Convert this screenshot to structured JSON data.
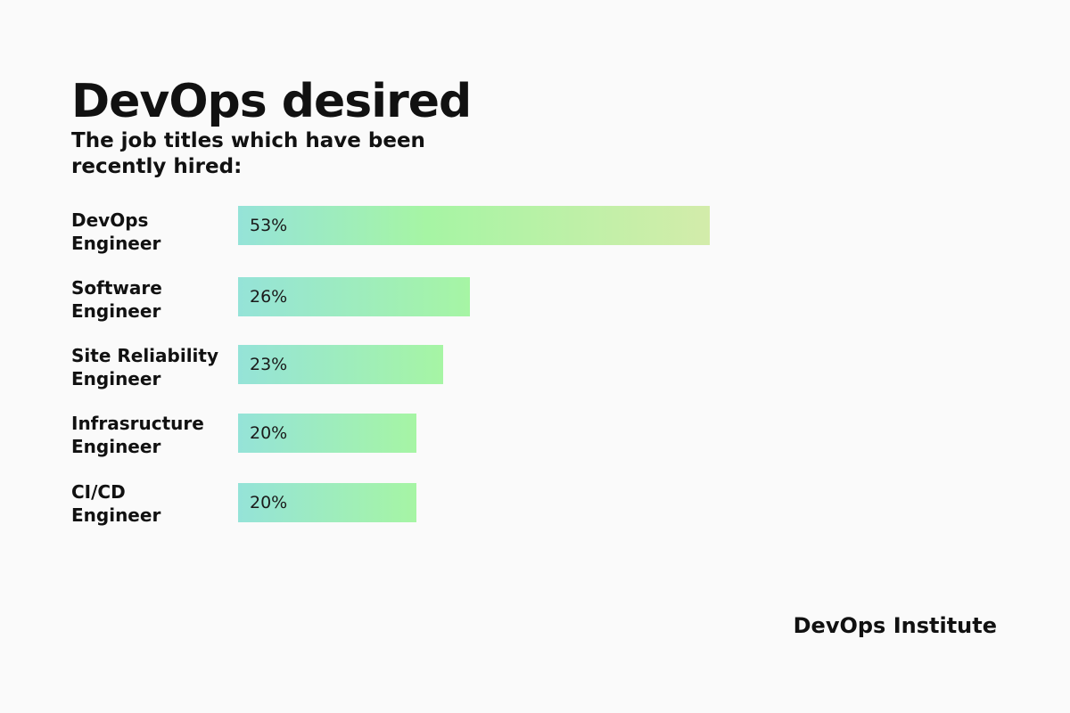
{
  "chart_data": {
    "type": "bar",
    "orientation": "horizontal",
    "title": "DevOps desired",
    "subtitle": "The job titles which have been recently hired:",
    "categories": [
      "DevOps\nEngineer",
      "Software\nEngineer",
      "Site Reliability\nEngineer",
      "Infrasructure\nEngineer",
      "CI/CD\nEngineer"
    ],
    "values": [
      53,
      26,
      23,
      20,
      20
    ],
    "value_labels": [
      "53%",
      "26%",
      "23%",
      "20%",
      "20%"
    ],
    "unit": "%",
    "grid": false,
    "legend": "none"
  },
  "source": "DevOps Institute",
  "colors": {
    "background": "#fafafa",
    "bar_start": "#95e3d8",
    "bar_mid": "#a6f5a4",
    "bar_end": "#d3ecaa",
    "text": "#111111"
  }
}
